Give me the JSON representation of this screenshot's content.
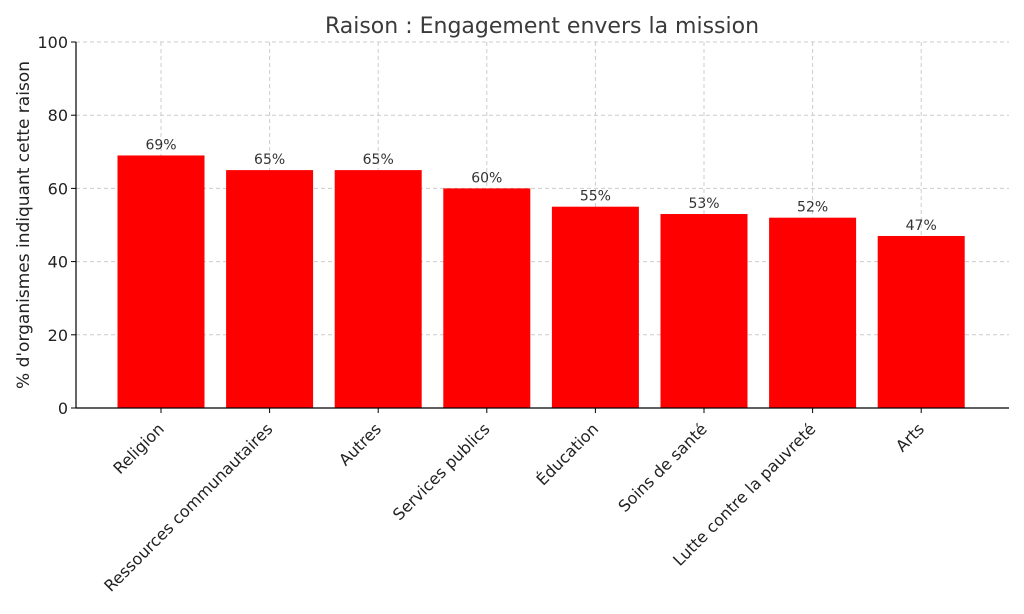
{
  "chart_data": {
    "type": "bar",
    "title": "Raison : Engagement envers la mission",
    "xlabel": "",
    "ylabel": "% d'organismes indiquant cette raison",
    "categories": [
      "Religion",
      "Ressources communautaires",
      "Autres",
      "Services publics",
      "Éducation",
      "Soins de santé",
      "Lutte contre la pauvreté",
      "Arts"
    ],
    "values": [
      69,
      65,
      65,
      60,
      55,
      53,
      52,
      47
    ],
    "value_labels": [
      "69%",
      "65%",
      "65%",
      "60%",
      "55%",
      "53%",
      "52%",
      "47%"
    ],
    "ylim": [
      0,
      100
    ],
    "yticks": [
      0,
      20,
      40,
      60,
      80,
      100
    ],
    "grid": true,
    "legend": "none",
    "bar_color": "#ff0000"
  }
}
